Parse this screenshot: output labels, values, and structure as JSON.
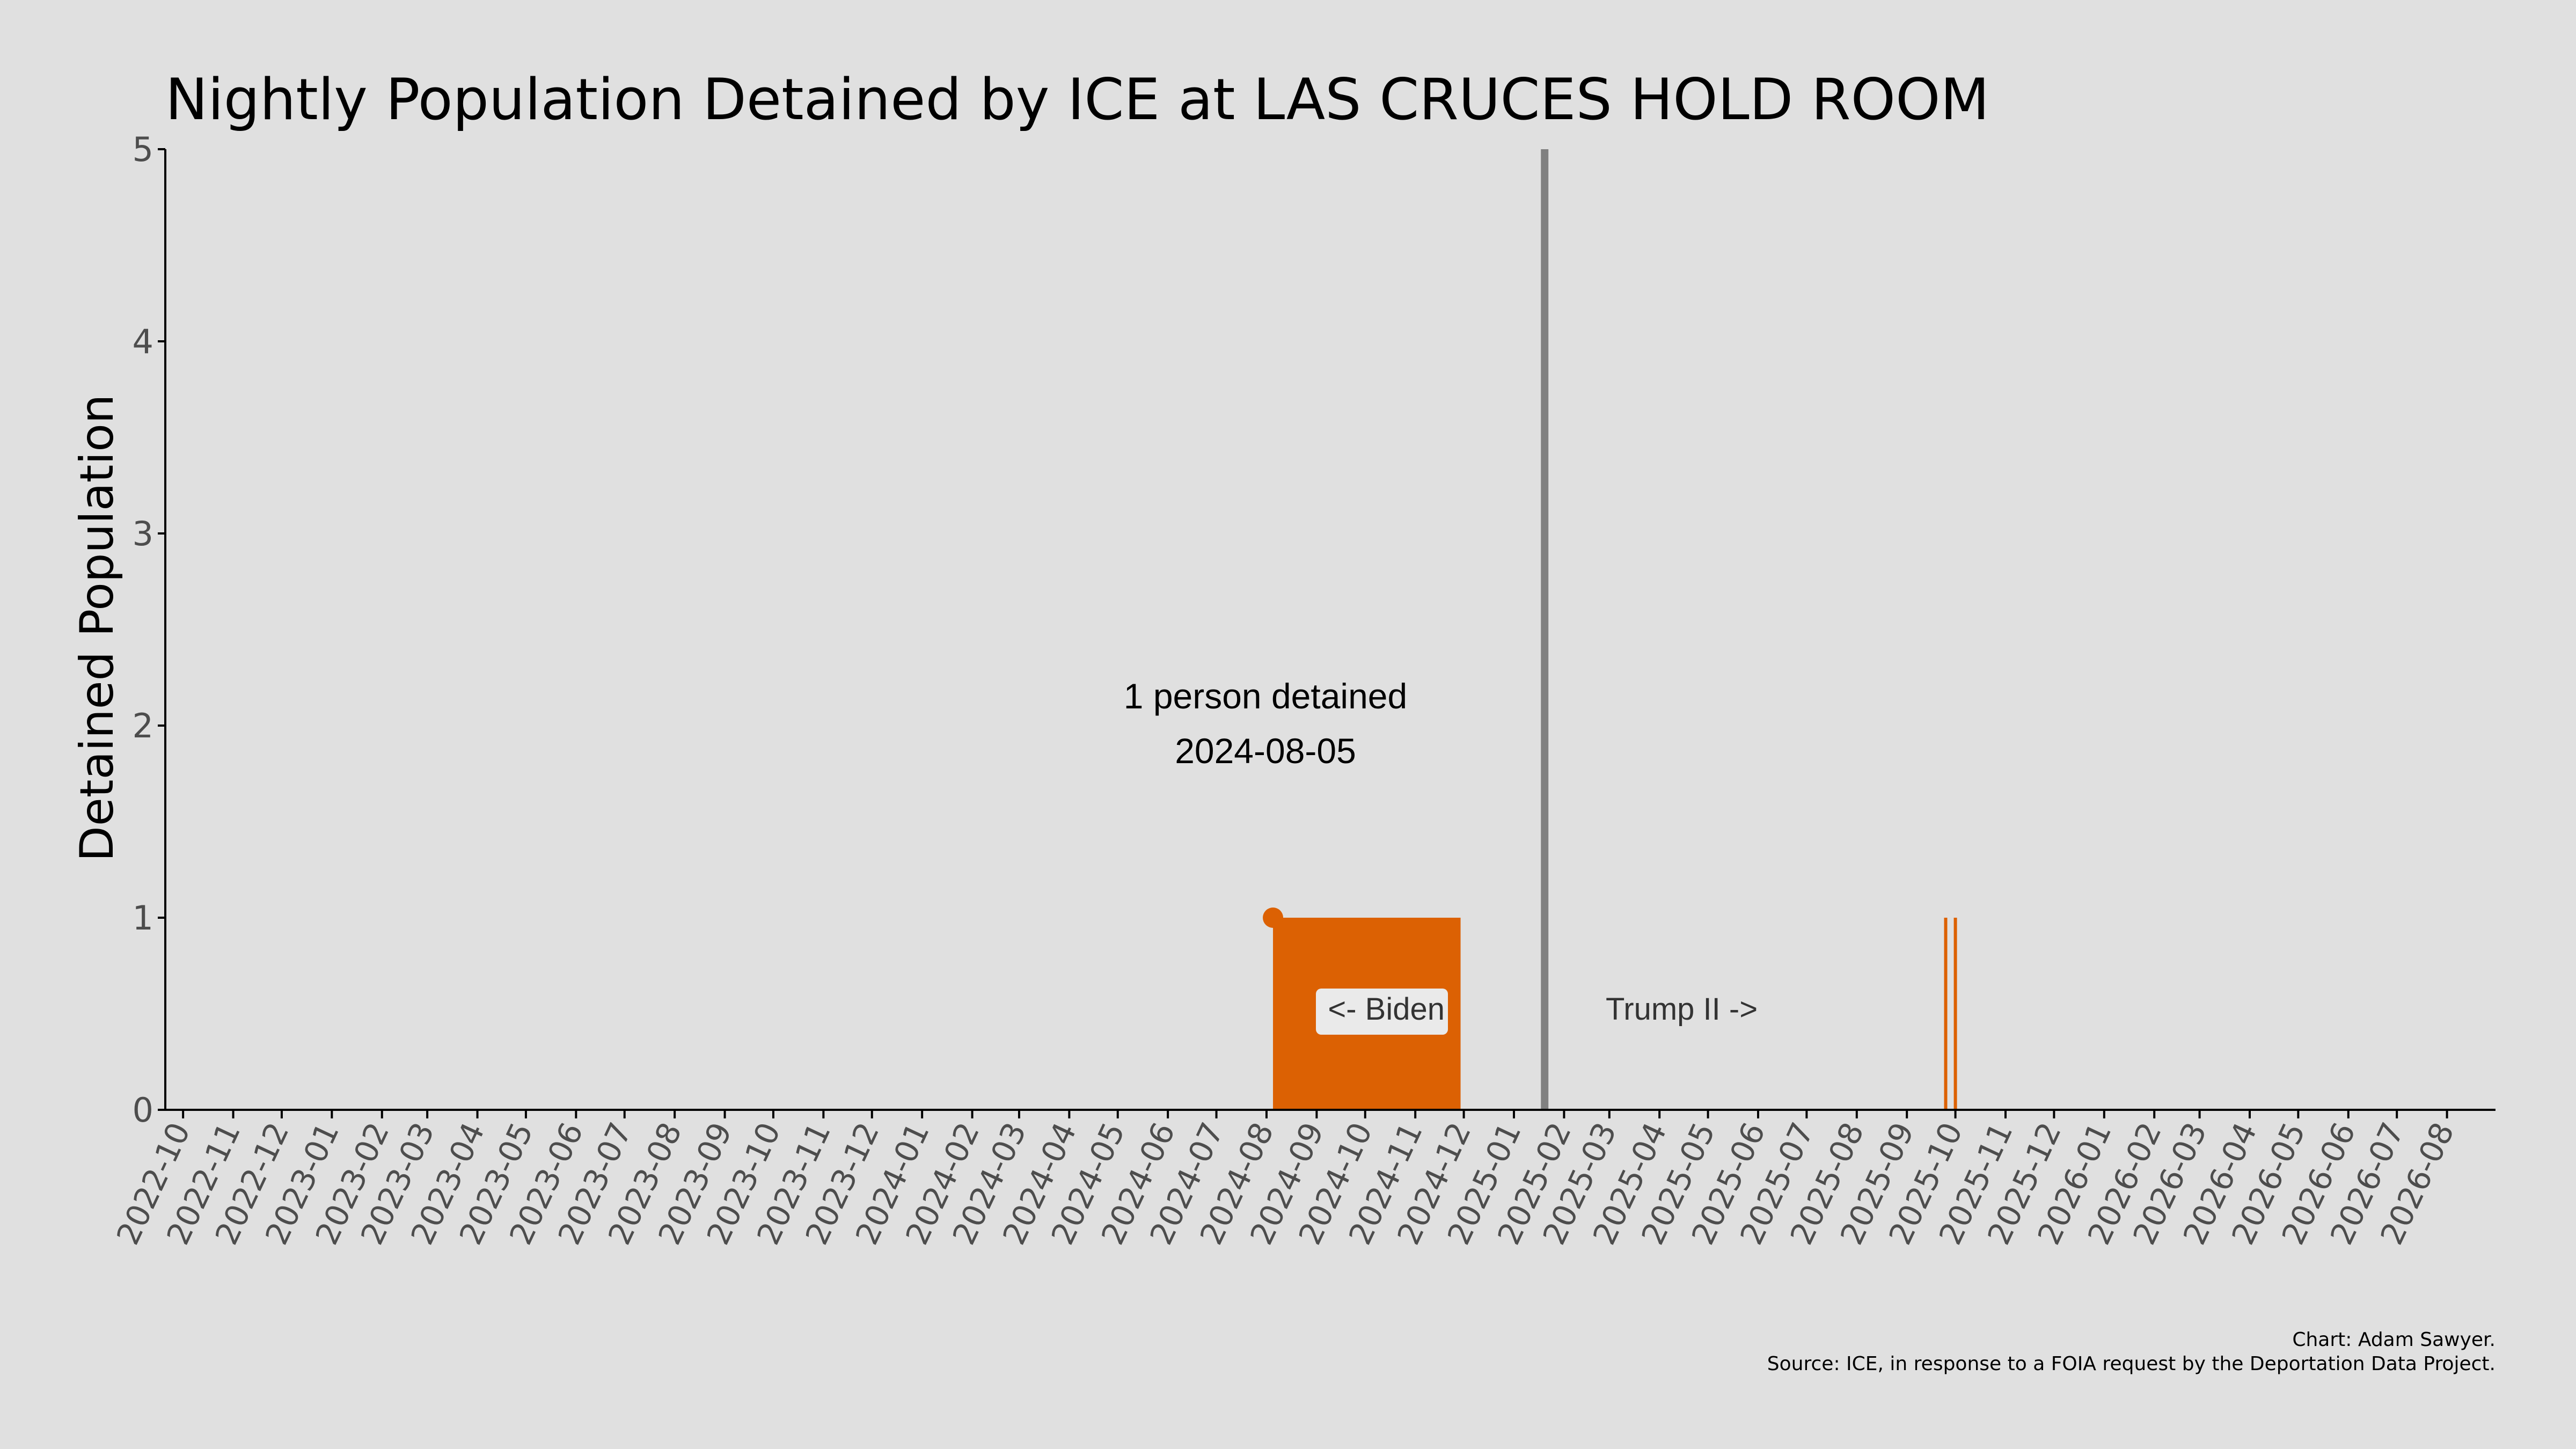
{
  "colors": {
    "background": "#e0e0e0",
    "series": "#dc6103",
    "divider": "#808080",
    "axis": "#000000",
    "tick_text": "#4d4d4d",
    "label_box": "#eaeaea"
  },
  "chart_data": {
    "type": "area",
    "title": "Nightly Population Detained by ICE at LAS CRUCES HOLD ROOM",
    "xlabel": "",
    "ylabel": "Detained Population",
    "ylim": [
      0,
      5
    ],
    "yticks": [
      0,
      1,
      2,
      3,
      4,
      5
    ],
    "xlim": [
      "2022-09-20",
      "2026-08-31"
    ],
    "xticks": [
      "2022-10",
      "2022-11",
      "2022-12",
      "2023-01",
      "2023-02",
      "2023-03",
      "2023-04",
      "2023-05",
      "2023-06",
      "2023-07",
      "2023-08",
      "2023-09",
      "2023-10",
      "2023-11",
      "2023-12",
      "2024-01",
      "2024-02",
      "2024-03",
      "2024-04",
      "2024-05",
      "2024-06",
      "2024-07",
      "2024-08",
      "2024-09",
      "2024-10",
      "2024-11",
      "2024-12",
      "2025-01",
      "2025-02",
      "2025-03",
      "2025-04",
      "2025-05",
      "2025-06",
      "2025-07",
      "2025-08",
      "2025-09",
      "2025-10",
      "2025-11",
      "2025-12",
      "2026-01",
      "2026-02",
      "2026-03",
      "2026-04",
      "2026-05",
      "2026-06",
      "2026-07",
      "2026-08"
    ],
    "grid": false,
    "series": [
      {
        "values_by_period": [
          {
            "start": "2024-08-05",
            "end": "2024-11-29",
            "value": 1
          },
          {
            "start": "2025-09-24",
            "end": "2025-09-25",
            "value": 1
          },
          {
            "start": "2025-09-30",
            "end": "2025-10-01",
            "value": 1
          }
        ]
      }
    ],
    "highlight_point": {
      "date": "2024-08-05",
      "value": 1
    },
    "divider_date": "2025-01-20",
    "annotations": {
      "peak_line1": "1 person detained",
      "peak_line2": "2024-08-05",
      "biden": "<- Biden",
      "trump": "Trump II ->"
    },
    "credit_line1": "Chart: Adam Sawyer.",
    "credit_line2": "Source: ICE, in response to a FOIA request by the Deportation Data Project."
  }
}
